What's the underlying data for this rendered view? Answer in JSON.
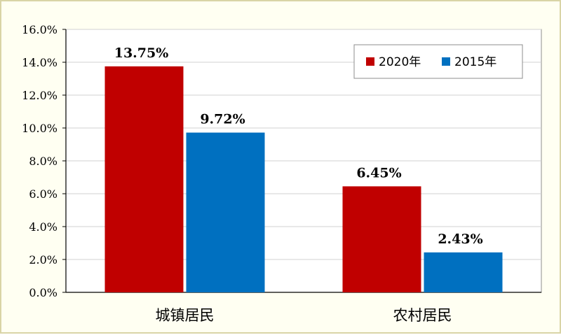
{
  "chart_data": {
    "type": "bar",
    "categories": [
      "城镇居民",
      "农村居民"
    ],
    "series": [
      {
        "name": "2020年",
        "values": [
          13.75,
          6.45
        ],
        "labels": [
          "13.75%",
          "6.45%"
        ],
        "color": "#c00000"
      },
      {
        "name": "2015年",
        "values": [
          9.72,
          2.43
        ],
        "labels": [
          "9.72%",
          "2.43%"
        ],
        "color": "#0070c0"
      }
    ],
    "ylim": [
      0,
      16
    ],
    "ytick_step": 2,
    "ytick_labels": [
      "0.0%",
      "2.0%",
      "4.0%",
      "6.0%",
      "8.0%",
      "10.0%",
      "12.0%",
      "14.0%",
      "16.0%"
    ],
    "grid": true,
    "legend_position": "top-right",
    "title": "",
    "xlabel": "",
    "ylabel": ""
  }
}
